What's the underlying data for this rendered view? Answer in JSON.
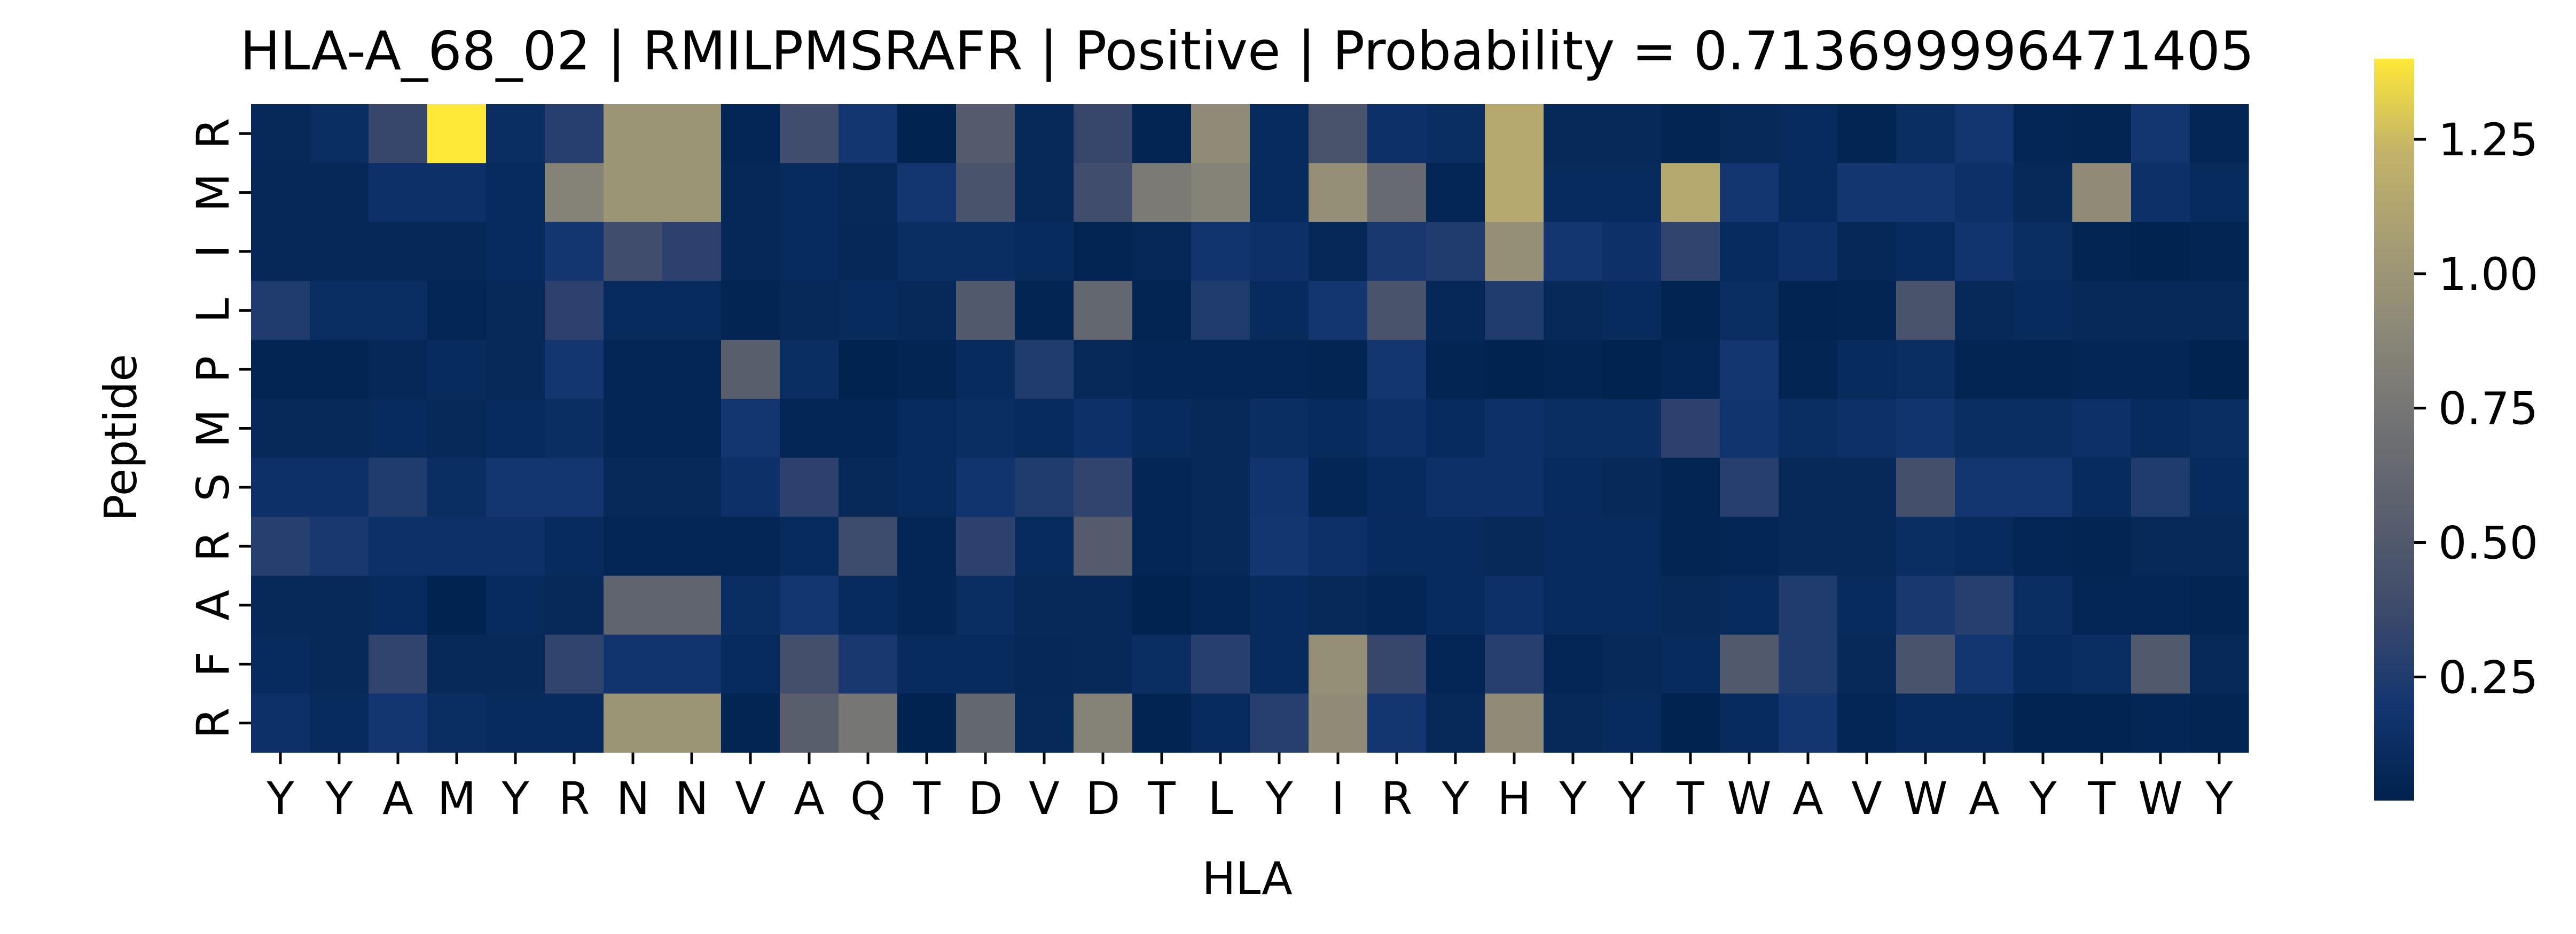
{
  "chart_data": {
    "type": "heatmap",
    "title": "HLA-A_68_02 | RMILPMSRAFR | Positive | Probability = 0.713699996471405",
    "xlabel": "HLA",
    "ylabel": "Peptide",
    "x_tick_labels": [
      "Y",
      "Y",
      "A",
      "M",
      "Y",
      "R",
      "N",
      "N",
      "V",
      "A",
      "Q",
      "T",
      "D",
      "V",
      "D",
      "T",
      "L",
      "Y",
      "I",
      "R",
      "Y",
      "H",
      "Y",
      "Y",
      "T",
      "W",
      "A",
      "V",
      "W",
      "A",
      "Y",
      "T",
      "W",
      "Y"
    ],
    "y_tick_labels": [
      "R",
      "M",
      "I",
      "L",
      "P",
      "M",
      "S",
      "R",
      "A",
      "F",
      "R"
    ],
    "colormap": "cividis",
    "colorbar": {
      "vmin": 0.02,
      "vmax": 1.4,
      "ticks": [
        0.25,
        0.5,
        0.75,
        1.0,
        1.25
      ],
      "tick_labels": [
        "0.25",
        "0.50",
        "0.75",
        "1.00",
        "1.25"
      ]
    },
    "values": [
      [
        0.08,
        0.12,
        0.35,
        1.4,
        0.12,
        0.28,
        1.0,
        1.0,
        0.06,
        0.4,
        0.2,
        0.03,
        0.52,
        0.08,
        0.35,
        0.05,
        0.92,
        0.1,
        0.45,
        0.15,
        0.12,
        1.15,
        0.08,
        0.08,
        0.05,
        0.08,
        0.1,
        0.05,
        0.12,
        0.2,
        0.06,
        0.05,
        0.2,
        0.06
      ],
      [
        0.07,
        0.07,
        0.15,
        0.15,
        0.1,
        0.85,
        1.0,
        1.0,
        0.07,
        0.1,
        0.08,
        0.2,
        0.45,
        0.08,
        0.4,
        0.78,
        0.85,
        0.1,
        0.95,
        0.65,
        0.06,
        1.15,
        0.1,
        0.1,
        1.15,
        0.2,
        0.1,
        0.2,
        0.2,
        0.15,
        0.08,
        0.92,
        0.15,
        0.1
      ],
      [
        0.07,
        0.07,
        0.07,
        0.07,
        0.1,
        0.2,
        0.4,
        0.3,
        0.07,
        0.1,
        0.07,
        0.12,
        0.12,
        0.1,
        0.05,
        0.07,
        0.18,
        0.15,
        0.07,
        0.22,
        0.25,
        0.95,
        0.2,
        0.15,
        0.32,
        0.1,
        0.15,
        0.07,
        0.1,
        0.18,
        0.12,
        0.05,
        0.03,
        0.05
      ],
      [
        0.25,
        0.12,
        0.12,
        0.06,
        0.08,
        0.3,
        0.1,
        0.1,
        0.05,
        0.08,
        0.1,
        0.08,
        0.5,
        0.05,
        0.62,
        0.05,
        0.25,
        0.1,
        0.2,
        0.45,
        0.07,
        0.25,
        0.08,
        0.1,
        0.04,
        0.12,
        0.04,
        0.05,
        0.45,
        0.08,
        0.1,
        0.08,
        0.08,
        0.08
      ],
      [
        0.05,
        0.05,
        0.07,
        0.1,
        0.08,
        0.2,
        0.06,
        0.06,
        0.55,
        0.12,
        0.03,
        0.05,
        0.1,
        0.25,
        0.08,
        0.06,
        0.06,
        0.06,
        0.05,
        0.2,
        0.05,
        0.03,
        0.05,
        0.03,
        0.06,
        0.2,
        0.05,
        0.1,
        0.12,
        0.05,
        0.05,
        0.06,
        0.06,
        0.03
      ],
      [
        0.08,
        0.08,
        0.1,
        0.08,
        0.1,
        0.12,
        0.06,
        0.06,
        0.2,
        0.06,
        0.06,
        0.1,
        0.12,
        0.1,
        0.15,
        0.1,
        0.08,
        0.12,
        0.1,
        0.15,
        0.1,
        0.15,
        0.12,
        0.12,
        0.3,
        0.18,
        0.12,
        0.15,
        0.18,
        0.12,
        0.12,
        0.15,
        0.1,
        0.12
      ],
      [
        0.15,
        0.15,
        0.25,
        0.12,
        0.2,
        0.2,
        0.08,
        0.08,
        0.15,
        0.3,
        0.08,
        0.1,
        0.18,
        0.25,
        0.32,
        0.06,
        0.08,
        0.18,
        0.06,
        0.1,
        0.15,
        0.15,
        0.1,
        0.08,
        0.05,
        0.28,
        0.08,
        0.08,
        0.42,
        0.2,
        0.2,
        0.1,
        0.25,
        0.1
      ],
      [
        0.28,
        0.22,
        0.15,
        0.15,
        0.15,
        0.1,
        0.06,
        0.06,
        0.06,
        0.1,
        0.38,
        0.06,
        0.3,
        0.1,
        0.52,
        0.06,
        0.08,
        0.2,
        0.15,
        0.1,
        0.1,
        0.08,
        0.1,
        0.1,
        0.05,
        0.06,
        0.08,
        0.08,
        0.12,
        0.1,
        0.06,
        0.05,
        0.08,
        0.08
      ],
      [
        0.08,
        0.08,
        0.1,
        0.03,
        0.1,
        0.08,
        0.6,
        0.6,
        0.12,
        0.2,
        0.1,
        0.06,
        0.12,
        0.08,
        0.08,
        0.03,
        0.06,
        0.1,
        0.08,
        0.06,
        0.1,
        0.15,
        0.1,
        0.1,
        0.08,
        0.1,
        0.25,
        0.1,
        0.22,
        0.28,
        0.12,
        0.06,
        0.06,
        0.05
      ],
      [
        0.1,
        0.08,
        0.32,
        0.08,
        0.08,
        0.32,
        0.18,
        0.18,
        0.1,
        0.42,
        0.22,
        0.1,
        0.1,
        0.07,
        0.08,
        0.12,
        0.28,
        0.1,
        0.95,
        0.35,
        0.06,
        0.28,
        0.06,
        0.08,
        0.1,
        0.5,
        0.25,
        0.08,
        0.45,
        0.2,
        0.1,
        0.12,
        0.5,
        0.08
      ],
      [
        0.15,
        0.1,
        0.2,
        0.12,
        0.1,
        0.1,
        1.0,
        1.0,
        0.05,
        0.55,
        0.75,
        0.03,
        0.62,
        0.08,
        0.85,
        0.04,
        0.1,
        0.28,
        0.92,
        0.2,
        0.08,
        0.92,
        0.08,
        0.1,
        0.03,
        0.1,
        0.2,
        0.06,
        0.1,
        0.1,
        0.04,
        0.04,
        0.06,
        0.05
      ]
    ]
  }
}
